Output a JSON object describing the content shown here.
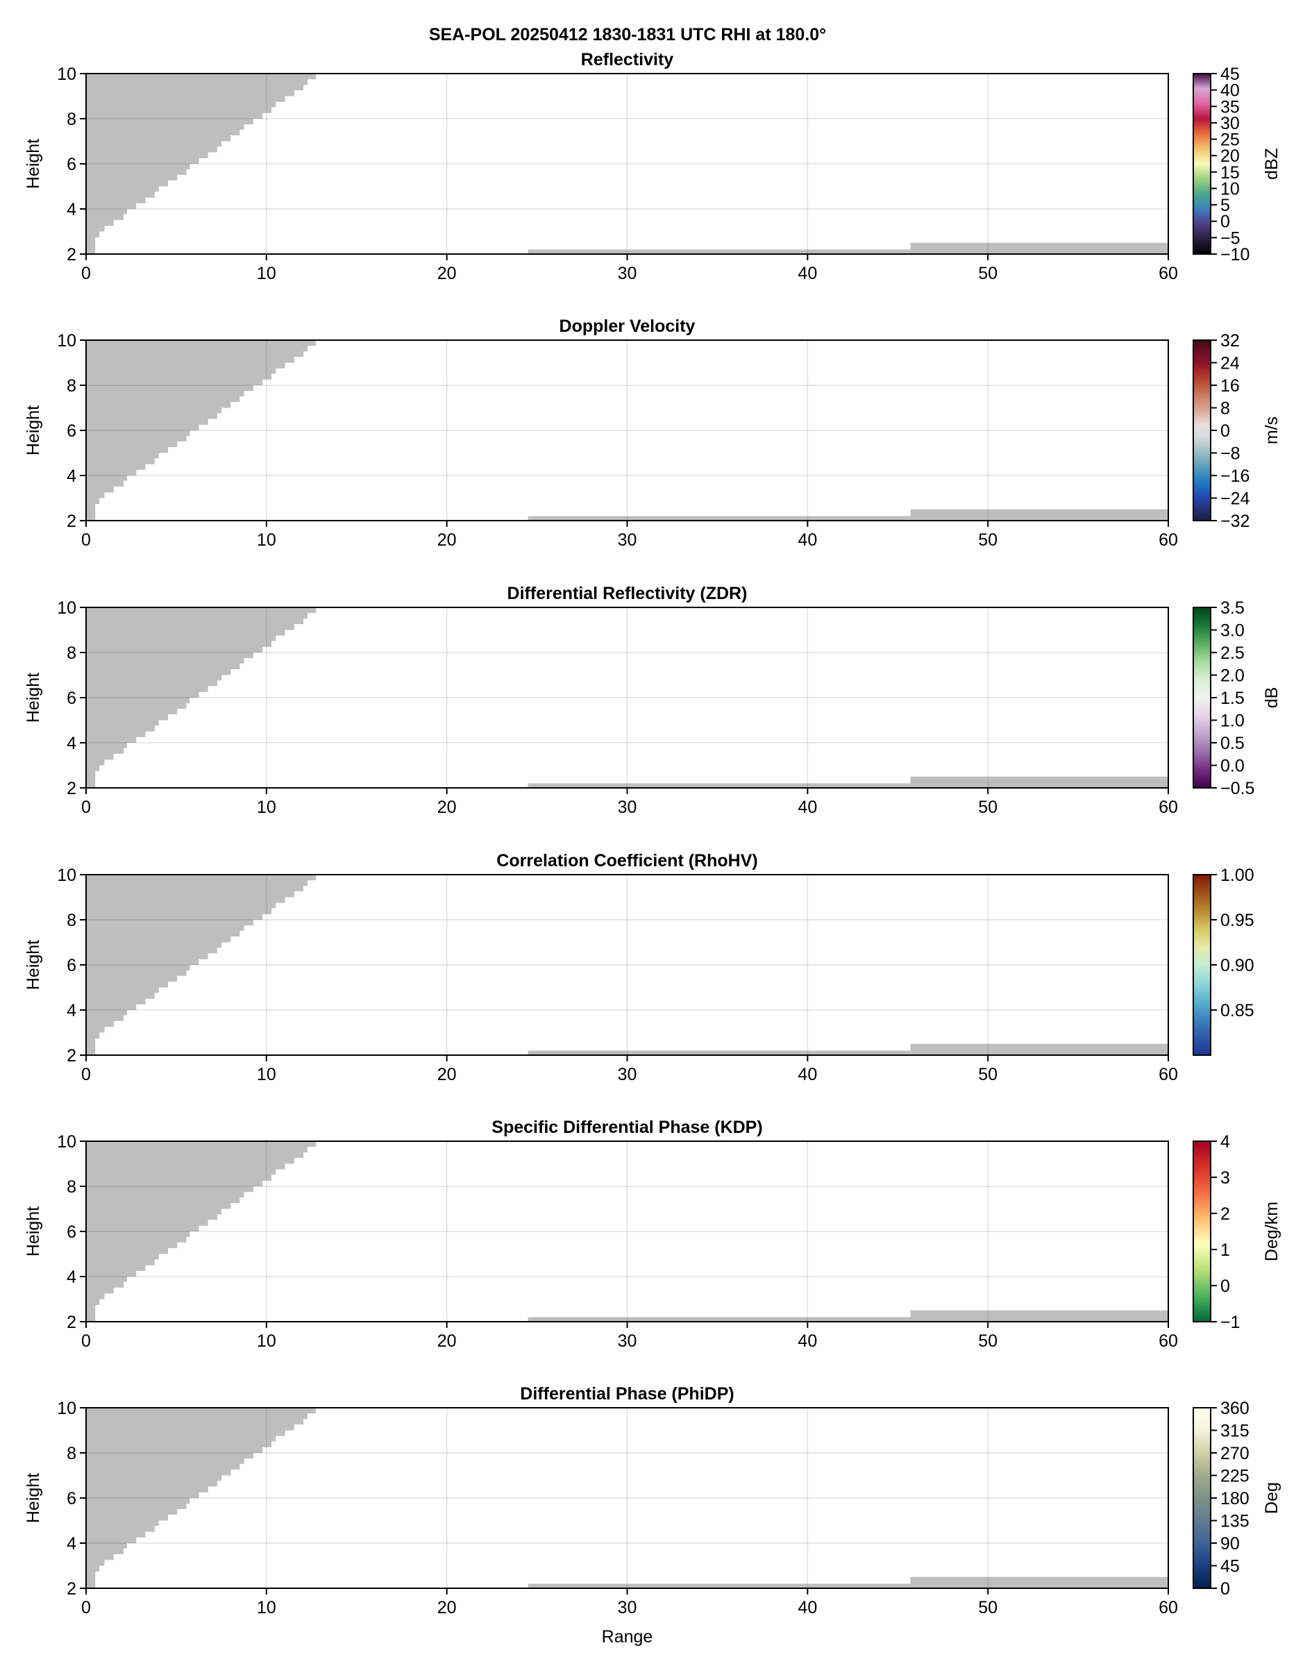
{
  "figure": {
    "suptitle": "SEA-POL 20250412 1830-1831 UTC RHI at 180.0°"
  },
  "mask_color": "#bebebe",
  "chart_data": [
    {
      "type": "heatmap",
      "title": "Reflectivity",
      "xlabel": "",
      "ylabel": "Height",
      "xlim": [
        0,
        60
      ],
      "ylim": [
        2,
        10
      ],
      "xticks": [
        "0",
        "10",
        "20",
        "30",
        "40",
        "50",
        "60"
      ],
      "yticks": [
        "2",
        "4",
        "6",
        "8",
        "10"
      ],
      "grid": true,
      "colorbar": {
        "label": "dBZ",
        "range": [
          -10,
          45
        ],
        "ticks": [
          -10,
          -5,
          0,
          5,
          10,
          15,
          20,
          25,
          30,
          35,
          40,
          45
        ],
        "tick_labels": [
          "−10",
          "−5",
          "0",
          "5",
          "10",
          "15",
          "20",
          "25",
          "30",
          "35",
          "40",
          "45"
        ],
        "colors": [
          "#000000",
          "#2a2040",
          "#4e3f86",
          "#3d7fbf",
          "#4aa98c",
          "#9fd07f",
          "#f8f9b8",
          "#f2c46e",
          "#ea6d3b",
          "#b5163f",
          "#e264a2",
          "#d9a6d6",
          "#3b0a45"
        ]
      }
    },
    {
      "type": "heatmap",
      "title": "Doppler Velocity",
      "xlabel": "",
      "ylabel": "Height",
      "xlim": [
        0,
        60
      ],
      "ylim": [
        2,
        10
      ],
      "xticks": [
        "0",
        "10",
        "20",
        "30",
        "40",
        "50",
        "60"
      ],
      "yticks": [
        "2",
        "4",
        "6",
        "8",
        "10"
      ],
      "grid": true,
      "colorbar": {
        "label": "m/s",
        "range": [
          -32,
          32
        ],
        "ticks": [
          -32,
          -24,
          -16,
          -8,
          0,
          8,
          16,
          24,
          32
        ],
        "tick_labels": [
          "−32",
          "−24",
          "−16",
          "−8",
          "0",
          "8",
          "16",
          "24",
          "32"
        ],
        "colors": [
          "#1a1c44",
          "#253476",
          "#2447b4",
          "#1b74c0",
          "#4390bd",
          "#77abc0",
          "#abc3cb",
          "#d8dcdf",
          "#e9dbd8",
          "#dcb0a1",
          "#d18a72",
          "#c0624a",
          "#b0382a",
          "#92142a",
          "#6e0f26",
          "#420a16"
        ]
      }
    },
    {
      "type": "heatmap",
      "title": "Differential Reflectivity (ZDR)",
      "xlabel": "",
      "ylabel": "Height",
      "xlim": [
        0,
        60
      ],
      "ylim": [
        2,
        10
      ],
      "xticks": [
        "0",
        "10",
        "20",
        "30",
        "40",
        "50",
        "60"
      ],
      "yticks": [
        "2",
        "4",
        "6",
        "8",
        "10"
      ],
      "grid": true,
      "colorbar": {
        "label": "dB",
        "range": [
          -0.5,
          3.5
        ],
        "ticks": [
          -0.5,
          0,
          0.5,
          1,
          1.5,
          2,
          2.5,
          3,
          3.5
        ],
        "tick_labels": [
          "−0.5",
          "0.0",
          "0.5",
          "1.0",
          "1.5",
          "2.0",
          "2.5",
          "3.0",
          "3.5"
        ],
        "colors": [
          "#40004b",
          "#762a83",
          "#9970ab",
          "#c2a5cf",
          "#e7d4e8",
          "#f1f1f1",
          "#d9f0d3",
          "#a6dba0",
          "#5aae61",
          "#1b7837",
          "#00441b"
        ]
      }
    },
    {
      "type": "heatmap",
      "title": "Correlation Coefficient (RhoHV)",
      "xlabel": "",
      "ylabel": "Height",
      "xlim": [
        0,
        60
      ],
      "ylim": [
        2,
        10
      ],
      "xticks": [
        "0",
        "10",
        "20",
        "30",
        "40",
        "50",
        "60"
      ],
      "yticks": [
        "2",
        "4",
        "6",
        "8",
        "10"
      ],
      "grid": true,
      "colorbar": {
        "label": "",
        "range": [
          0.8,
          1.0
        ],
        "ticks": [
          0.85,
          0.9,
          0.95,
          1.0
        ],
        "tick_labels": [
          "0.85",
          "0.90",
          "0.95",
          "1.00"
        ],
        "colors": [
          "#1f3593",
          "#2c5aa8",
          "#3d84bf",
          "#5ab3cf",
          "#8fd8da",
          "#c7ecd4",
          "#e6e9a6",
          "#d7c864",
          "#b98a2f",
          "#9d5019",
          "#7f1700"
        ]
      }
    },
    {
      "type": "heatmap",
      "title": "Specific Differential Phase (KDP)",
      "xlabel": "",
      "ylabel": "Height",
      "xlim": [
        0,
        60
      ],
      "ylim": [
        2,
        10
      ],
      "xticks": [
        "0",
        "10",
        "20",
        "30",
        "40",
        "50",
        "60"
      ],
      "yticks": [
        "2",
        "4",
        "6",
        "8",
        "10"
      ],
      "grid": true,
      "colorbar": {
        "label": "Deg/km",
        "range": [
          -1,
          4
        ],
        "ticks": [
          -1,
          0,
          1,
          2,
          3,
          4
        ],
        "tick_labels": [
          "−1",
          "0",
          "1",
          "2",
          "3",
          "4"
        ],
        "colors": [
          "#006837",
          "#4db35f",
          "#b7e075",
          "#ffffbf",
          "#fdbf6f",
          "#f46d43",
          "#d73027",
          "#a50026"
        ]
      }
    },
    {
      "type": "heatmap",
      "title": "Differential Phase (PhiDP)",
      "xlabel": "Range",
      "ylabel": "Height",
      "xlim": [
        0,
        60
      ],
      "ylim": [
        2,
        10
      ],
      "xticks": [
        "0",
        "10",
        "20",
        "30",
        "40",
        "50",
        "60"
      ],
      "yticks": [
        "2",
        "4",
        "6",
        "8",
        "10"
      ],
      "grid": true,
      "colorbar": {
        "label": "Deg",
        "range": [
          0,
          360
        ],
        "ticks": [
          0,
          45,
          90,
          135,
          180,
          225,
          270,
          315,
          360
        ],
        "tick_labels": [
          "0",
          "45",
          "90",
          "135",
          "180",
          "225",
          "270",
          "315",
          "360"
        ],
        "colors": [
          "#00204c",
          "#1c3f80",
          "#3e6399",
          "#607c8f",
          "#7d918a",
          "#a3ab8a",
          "#cfd0a6",
          "#f4f4dc",
          "#fffff2"
        ]
      }
    }
  ],
  "masked_region": {
    "upper_left_staircase": [
      [
        0.51,
        2.74
      ],
      [
        0.74,
        3.0
      ],
      [
        1.02,
        3.25
      ],
      [
        1.53,
        3.51
      ],
      [
        2.08,
        3.77
      ],
      [
        2.27,
        4.0
      ],
      [
        2.78,
        4.25
      ],
      [
        3.29,
        4.5
      ],
      [
        3.8,
        4.76
      ],
      [
        4.03,
        5.0
      ],
      [
        4.54,
        5.26
      ],
      [
        5.05,
        5.51
      ],
      [
        5.56,
        5.75
      ],
      [
        5.75,
        6.0
      ],
      [
        6.25,
        6.25
      ],
      [
        6.76,
        6.51
      ],
      [
        7.27,
        6.76
      ],
      [
        7.51,
        7.0
      ],
      [
        8.02,
        7.26
      ],
      [
        8.52,
        7.51
      ],
      [
        8.76,
        7.75
      ],
      [
        9.27,
        8.0
      ],
      [
        9.78,
        8.25
      ],
      [
        10.28,
        8.51
      ],
      [
        10.52,
        8.75
      ],
      [
        11.03,
        9.0
      ],
      [
        11.54,
        9.26
      ],
      [
        12.05,
        9.5
      ],
      [
        12.28,
        9.75
      ],
      [
        12.74,
        10.0
      ]
    ],
    "low_blocks": [
      {
        "x": [
          24.5,
          45.7
        ],
        "top": 2.2
      },
      {
        "x": [
          45.7,
          60
        ],
        "top": 2.5
      }
    ]
  }
}
